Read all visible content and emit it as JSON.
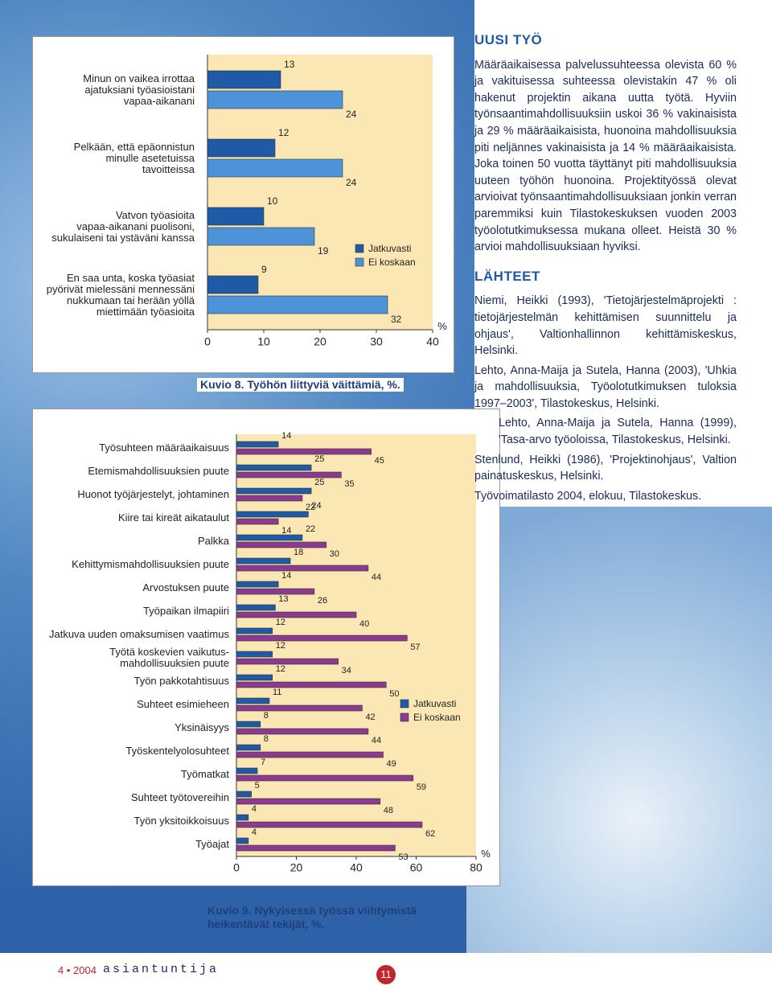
{
  "chart_data": [
    {
      "type": "hbar",
      "title": "Kuvio 8. Työhön liittyviä väittämiä, %.",
      "categories": [
        "Minun on vaikea irrottaa\najatuksiani työasioistani\nvapaa-aikanani",
        "Pelkään, että epäonnistun\nminulle asetetuissa\ntavoitteissa",
        "Vatvon työasioita\nvapaa-aikanani puolisoni,\nsukulaiseni tai ystäväni kanssa",
        "En saa unta, koska työasiat\npyörivät mielessäni mennessäni\nnukkumaan tai herään yöllä\nmiettimään työasioita"
      ],
      "series": [
        {
          "name": "Jatkuvasti",
          "color": "#1f5aa6",
          "values": [
            13,
            12,
            10,
            9
          ]
        },
        {
          "name": "Ei koskaan",
          "color": "#4d93da",
          "values": [
            24,
            24,
            19,
            32
          ]
        }
      ],
      "xlim": [
        0,
        40
      ],
      "xticks": [
        0,
        10,
        20,
        30,
        40
      ],
      "unit": "%"
    },
    {
      "type": "hbar",
      "title": "Kuvio 9. Nykyisessä työssä viihtymistä\nheikentävät tekijät, %.",
      "categories": [
        "Työsuhteen määräaikaisuus",
        "Etemismahdollisuuksien puute",
        "Huonot työjärjestelyt, johtaminen",
        "Kiire tai kireät aikataulut",
        "Palkka",
        "Kehittymismahdollisuuksien puute",
        "Arvostuksen puute",
        "Työpaikan ilmapiiri",
        "Jatkuva uuden omaksumisen vaatimus",
        "Työtä koskevien vaikutus-\nmahdollisuuksien puute",
        "Työn pakkotahtisuus",
        "Suhteet esimieheen",
        "Yksinäisyys",
        "Työskentelyolosuhteet",
        "Työmatkat",
        "Suhteet työtovereihin",
        "Työn yksitoikkoisuus",
        "Työajat"
      ],
      "series": [
        {
          "name": "Jatkuvasti",
          "color": "#1f5aa6",
          "values": [
            14,
            25,
            25,
            24,
            22,
            18,
            14,
            13,
            12,
            12,
            12,
            11,
            8,
            8,
            7,
            5,
            4,
            4
          ]
        },
        {
          "name": "Ei koskaan",
          "color": "#8b3a8f",
          "values": [
            45,
            35,
            22,
            14,
            30,
            44,
            26,
            40,
            57,
            34,
            50,
            42,
            44,
            49,
            59,
            48,
            62,
            53
          ]
        }
      ],
      "xlim": [
        0,
        80
      ],
      "xticks": [
        0,
        20,
        40,
        60,
        80
      ],
      "unit": "%"
    }
  ],
  "article": {
    "heading": "UUSI TYÖ",
    "paragraph": "Määräaikaisessa palvelussuhteessa olevista 60 % ja vakituisessa suhteessa olevistakin 47 % oli hakenut projektin aikana uutta työtä. Hyviin työnsaantimahdollisuuksiin uskoi 36 % vakinaisista ja 29 % määräaikaisista, huonoina mahdollisuuksia piti neljännes vakinaisista ja 14 % määräaikaisista. Joka toinen 50 vuotta täyttänyt piti mahdollisuuksia uuteen työhön huonoina. Projektityössä olevat arvioivat työnsaantimahdollisuuksiaan jonkin verran paremmiksi kuin Tilastokeskuksen vuoden 2003 työolotutkimuksessa mukana olleet. Heistä 30 % arvioi mahdollisuuksiaan hyviksi.",
    "sources_heading": "LÄHTEET",
    "sources": [
      "Niemi, Heikki (1993), 'Tietojärjestelmäprojekti : tietojärjestelmän kehittämisen suunnittelu ja ohjaus', Valtionhallinnon kehittämiskeskus, Helsinki.",
      "Lehto, Anna-Maija ja Sutela, Hanna (2003), 'Uhkia ja mahdollisuuksia, Työolotutkimuksen tuloksia 1997–2003', Tilastokeskus, Helsinki.",
      "Lehto, Anna-Maija ja Sutela, Hanna (1999), 'Tasa-arvo työoloissa, Tilastokeskus, Helsinki.",
      "Stenlund, Heikki (1986), 'Projektinohjaus', Valtion painatuskeskus, Helsinki.",
      "Työvoimatilasto 2004, elokuu, Tilastokeskus."
    ]
  },
  "footer": {
    "issue": "4 • 2004",
    "magazine": "asiantuntija",
    "page_number": "11"
  }
}
